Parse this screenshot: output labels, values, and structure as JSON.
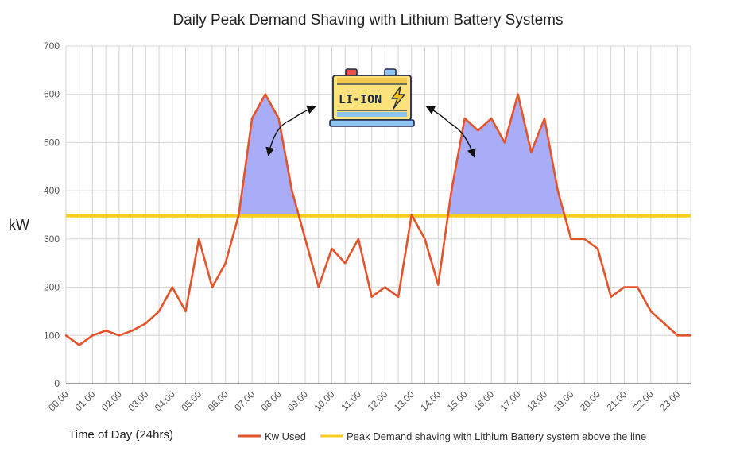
{
  "chart_data": {
    "type": "line",
    "title": "Daily Peak Demand Shaving with Lithium Battery Systems",
    "xlabel": "Time of Day (24hrs)",
    "ylabel": "kW",
    "ylim": [
      0,
      700
    ],
    "yticks": [
      0,
      100,
      200,
      300,
      400,
      500,
      600,
      700
    ],
    "xtick_labels": [
      "00:00",
      "01:00",
      "02:00",
      "03:00",
      "04:00",
      "05:00",
      "06:00",
      "07:00",
      "08:00",
      "09:00",
      "10:00",
      "11:00",
      "12:00",
      "13:00",
      "14:00",
      "15:00",
      "16:00",
      "17:00",
      "18:00",
      "19:00",
      "20:00",
      "21:00",
      "22:00",
      "23:00"
    ],
    "x_step_hours": 0.5,
    "grid": true,
    "legend_position": "bottom",
    "series": [
      {
        "name": "Kw Used",
        "color": "#e4532a",
        "values": [
          100,
          80,
          100,
          110,
          100,
          110,
          125,
          150,
          200,
          150,
          300,
          200,
          250,
          350,
          550,
          600,
          550,
          400,
          300,
          200,
          280,
          250,
          300,
          180,
          200,
          180,
          350,
          300,
          205,
          400,
          550,
          525,
          550,
          500,
          600,
          480,
          550,
          400,
          300,
          300,
          280,
          180,
          200,
          200,
          150,
          125,
          100,
          100
        ]
      }
    ],
    "threshold": {
      "name": "Peak Demand shaving with Lithium Battery system above the line",
      "value": 348,
      "color": "#f9cd1b"
    },
    "shaded_color": "#a9acf6",
    "annotation": {
      "icon": "lithium-ion-battery-icon",
      "text": "LI-ION"
    }
  }
}
